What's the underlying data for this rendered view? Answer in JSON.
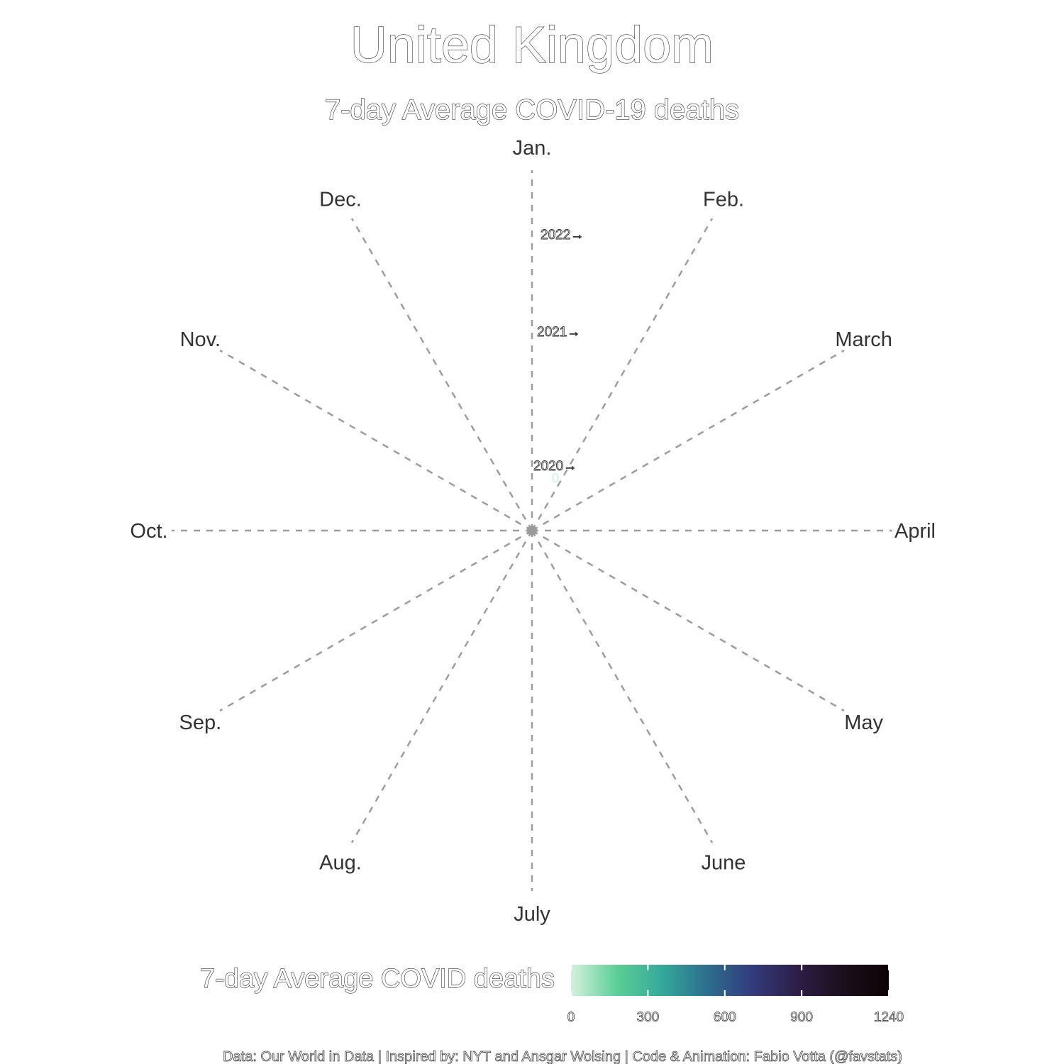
{
  "chart_data": {
    "type": "line",
    "title": "United Kingdom",
    "subtitle": "7-day Average COVID-19 deaths",
    "months": [
      "Jan.",
      "Feb.",
      "March",
      "April",
      "May",
      "June",
      "July",
      "Aug.",
      "Sep.",
      "Oct.",
      "Nov.",
      "Dec."
    ],
    "year_labels": [
      "2020→",
      "2021→",
      "2022→"
    ],
    "series": [
      {
        "values": [
          0
        ]
      }
    ],
    "center_marker_value": "0",
    "legend": {
      "title": "7-day Average COVID deaths",
      "ticks": [
        "0",
        "300",
        "600",
        "900",
        "1240"
      ],
      "min": 0,
      "max": 1240,
      "colors": [
        "#d3f2df",
        "#5ccf96",
        "#35a99a",
        "#2d6e8e",
        "#333b7d",
        "#2d1e45",
        "#1a101c",
        "#0b0405"
      ]
    },
    "grid": true
  },
  "caption": "Data: Our World in Data | Inspired by: NYT and Ansgar Wolsing | Code & Animation: Fabio Votta (@favstats)"
}
